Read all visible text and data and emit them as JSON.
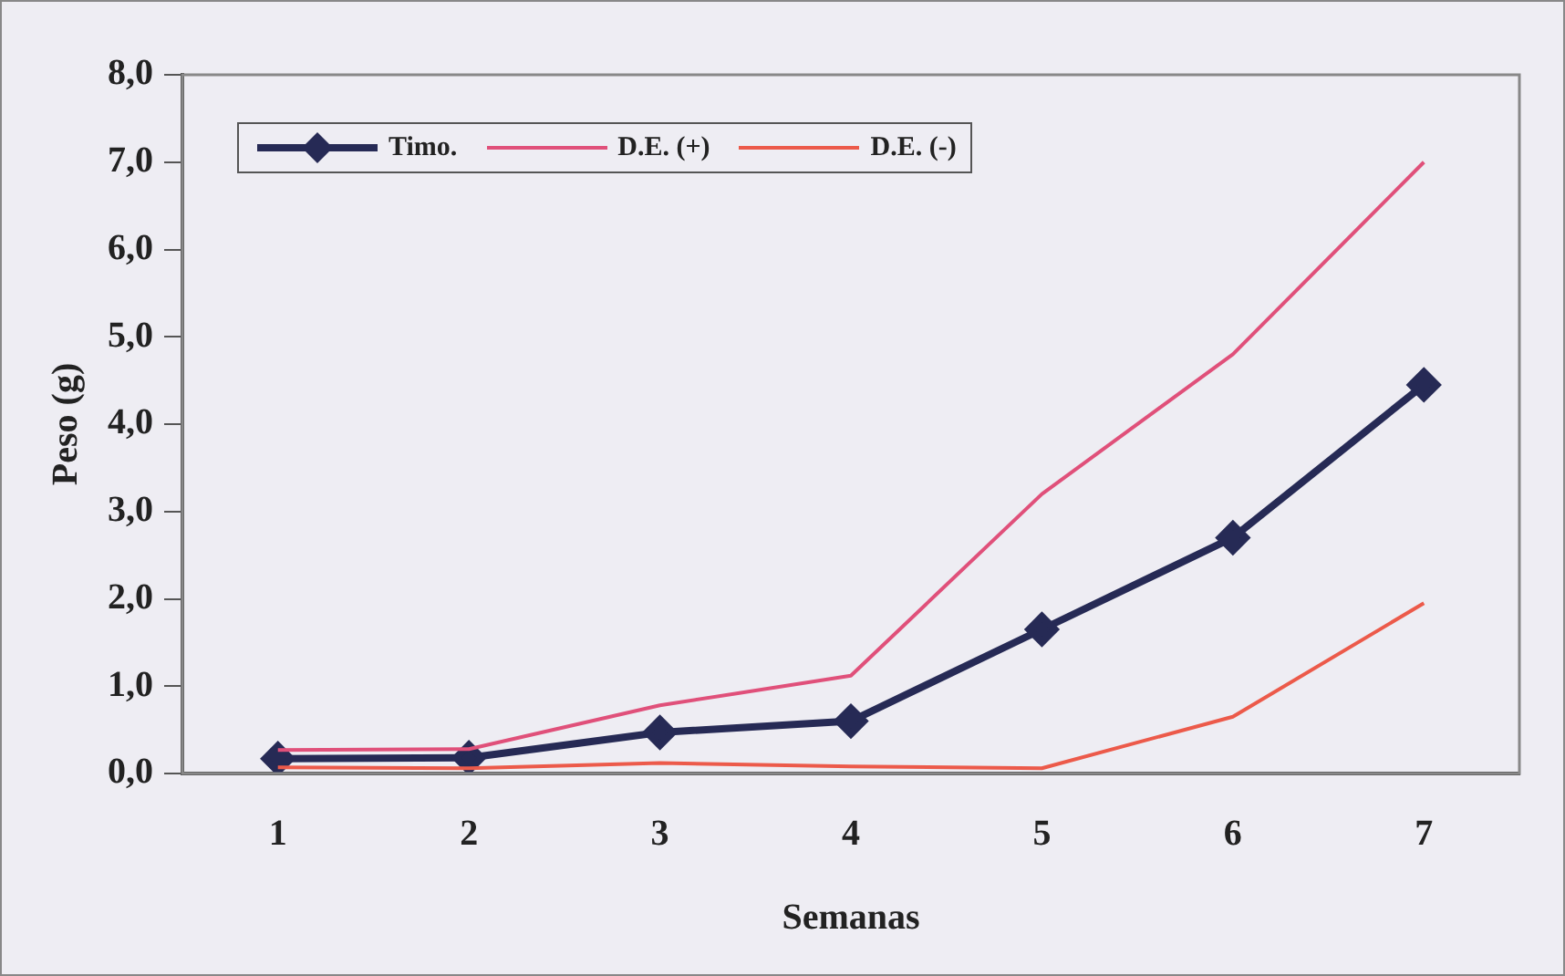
{
  "chart_data": {
    "type": "line",
    "xlabel": "Semanas",
    "ylabel": "Peso (g)",
    "categories": [
      "1",
      "2",
      "3",
      "4",
      "5",
      "6",
      "7"
    ],
    "series": [
      {
        "name": "Timo.",
        "color": "#262a55",
        "marker": "diamond",
        "values": [
          0.17,
          0.18,
          0.47,
          0.6,
          1.65,
          2.7,
          4.45
        ]
      },
      {
        "name": "D.E. (+)",
        "color": "#e0507a",
        "marker": "none",
        "values": [
          0.27,
          0.28,
          0.78,
          1.12,
          3.2,
          4.8,
          7.0
        ]
      },
      {
        "name": "D.E. (-)",
        "color": "#ec5a4a",
        "marker": "none",
        "values": [
          0.07,
          0.06,
          0.12,
          0.08,
          0.06,
          0.65,
          1.95
        ]
      }
    ],
    "ylim": [
      0,
      8
    ],
    "yticks": [
      {
        "value": 0,
        "label": "0,0"
      },
      {
        "value": 1,
        "label": "1,0"
      },
      {
        "value": 2,
        "label": "2,0"
      },
      {
        "value": 3,
        "label": "3,0"
      },
      {
        "value": 4,
        "label": "4,0"
      },
      {
        "value": 5,
        "label": "5,0"
      },
      {
        "value": 6,
        "label": "6,0"
      },
      {
        "value": 7,
        "label": "7,0"
      },
      {
        "value": 8,
        "label": "8,0"
      }
    ],
    "grid": false,
    "legend": "top left"
  }
}
